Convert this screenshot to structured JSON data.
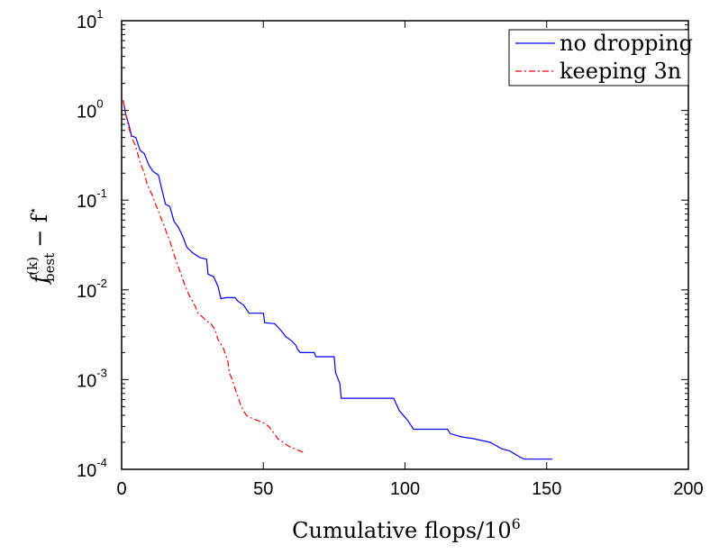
{
  "chart_data": {
    "type": "line",
    "title": "",
    "xlabel": "Cumulative flops/10",
    "xlabel_sup": "6",
    "ylabel": "f_best^(k) − f*",
    "ylabel_parts": {
      "f": "f",
      "sup": "(k)",
      "sub": "best",
      "rest": "− f",
      "star": "⋆"
    },
    "xlim": [
      0,
      200
    ],
    "ylim": [
      0.0001,
      10
    ],
    "yscale": "log",
    "grid": false,
    "legend_position": "top-right",
    "x_ticks": [
      "0",
      "50",
      "100",
      "150",
      "200"
    ],
    "x_tick_values": [
      0,
      50,
      100,
      150,
      200
    ],
    "y_ticks": [
      {
        "base": "10",
        "exp": "-4",
        "value": 0.0001
      },
      {
        "base": "10",
        "exp": "-3",
        "value": 0.001
      },
      {
        "base": "10",
        "exp": "-2",
        "value": 0.01
      },
      {
        "base": "10",
        "exp": "-1",
        "value": 0.1
      },
      {
        "base": "10",
        "exp": "0",
        "value": 1
      },
      {
        "base": "10",
        "exp": "1",
        "value": 10
      }
    ],
    "series": [
      {
        "name": "no dropping",
        "color": "#0000ff",
        "dash": "solid",
        "points": [
          [
            0.5,
            1.3
          ],
          [
            1.5,
            0.9
          ],
          [
            2.5,
            0.7
          ],
          [
            3.5,
            0.52
          ],
          [
            5,
            0.5
          ],
          [
            6.5,
            0.36
          ],
          [
            8,
            0.33
          ],
          [
            9.5,
            0.25
          ],
          [
            11,
            0.21
          ],
          [
            12,
            0.2
          ],
          [
            13,
            0.19
          ],
          [
            14,
            0.14
          ],
          [
            15.5,
            0.09
          ],
          [
            17,
            0.085
          ],
          [
            18.5,
            0.058
          ],
          [
            20,
            0.05
          ],
          [
            21.5,
            0.04
          ],
          [
            23,
            0.03
          ],
          [
            25,
            0.026
          ],
          [
            27.5,
            0.023
          ],
          [
            30,
            0.022
          ],
          [
            30.5,
            0.015
          ],
          [
            32.5,
            0.014
          ],
          [
            34,
            0.011
          ],
          [
            35,
            0.008
          ],
          [
            37,
            0.0082
          ],
          [
            40,
            0.0082
          ],
          [
            41,
            0.0075
          ],
          [
            43,
            0.0068
          ],
          [
            45,
            0.0055
          ],
          [
            50,
            0.0055
          ],
          [
            50.5,
            0.0043
          ],
          [
            54,
            0.0042
          ],
          [
            56,
            0.0036
          ],
          [
            58,
            0.003
          ],
          [
            60,
            0.0027
          ],
          [
            61.5,
            0.0024
          ],
          [
            62,
            0.0022
          ],
          [
            63,
            0.002
          ],
          [
            68,
            0.002
          ],
          [
            68.5,
            0.0018
          ],
          [
            71,
            0.0018
          ],
          [
            75,
            0.0018
          ],
          [
            75.5,
            0.0012
          ],
          [
            77,
            0.0009
          ],
          [
            77.5,
            0.00062
          ],
          [
            96,
            0.00062
          ],
          [
            98,
            0.00045
          ],
          [
            101,
            0.00035
          ],
          [
            103,
            0.00028
          ],
          [
            115,
            0.00028
          ],
          [
            116,
            0.00025
          ],
          [
            120,
            0.00023
          ],
          [
            124,
            0.00022
          ],
          [
            130,
            0.0002
          ],
          [
            134,
            0.00017
          ],
          [
            137,
            0.00016
          ],
          [
            140,
            0.00014
          ],
          [
            142,
            0.00013
          ],
          [
            152,
            0.00013
          ]
        ]
      },
      {
        "name": "keeping 3n",
        "color": "#ff0000",
        "dash": "dashdot",
        "points": [
          [
            0.5,
            1.3
          ],
          [
            1.5,
            0.9
          ],
          [
            2.5,
            0.65
          ],
          [
            3.5,
            0.5
          ],
          [
            5,
            0.4
          ],
          [
            6,
            0.3
          ],
          [
            7,
            0.24
          ],
          [
            8,
            0.2
          ],
          [
            9,
            0.15
          ],
          [
            10,
            0.13
          ],
          [
            11,
            0.11
          ],
          [
            12,
            0.09
          ],
          [
            13,
            0.075
          ],
          [
            14,
            0.062
          ],
          [
            15,
            0.052
          ],
          [
            16,
            0.042
          ],
          [
            17,
            0.035
          ],
          [
            18,
            0.028
          ],
          [
            19,
            0.022
          ],
          [
            20,
            0.018
          ],
          [
            21,
            0.015
          ],
          [
            22,
            0.012
          ],
          [
            23,
            0.01
          ],
          [
            24,
            0.0085
          ],
          [
            25,
            0.0075
          ],
          [
            26,
            0.0065
          ],
          [
            27,
            0.0055
          ],
          [
            28.5,
            0.005
          ],
          [
            30,
            0.0045
          ],
          [
            31.5,
            0.0042
          ],
          [
            33,
            0.0036
          ],
          [
            34,
            0.0028
          ],
          [
            35,
            0.0025
          ],
          [
            36,
            0.0022
          ],
          [
            37.5,
            0.0016
          ],
          [
            38,
            0.0012
          ],
          [
            39,
            0.001
          ],
          [
            40,
            0.0008
          ],
          [
            41,
            0.00065
          ],
          [
            42,
            0.00052
          ],
          [
            43,
            0.00045
          ],
          [
            44,
            0.0004
          ],
          [
            46,
            0.00037
          ],
          [
            48,
            0.00035
          ],
          [
            50,
            0.00033
          ],
          [
            52,
            0.0003
          ],
          [
            53,
            0.00027
          ],
          [
            54,
            0.00025
          ],
          [
            55,
            0.00022
          ],
          [
            57,
            0.0002
          ],
          [
            59,
            0.00018
          ],
          [
            61,
            0.00017
          ],
          [
            63,
            0.00016
          ],
          [
            64,
            0.000155
          ]
        ]
      }
    ],
    "legend": [
      {
        "label": "no dropping",
        "color": "#0000ff",
        "dash": "solid"
      },
      {
        "label": "keeping 3n",
        "color": "#ff0000",
        "dash": "dashdot"
      }
    ]
  }
}
